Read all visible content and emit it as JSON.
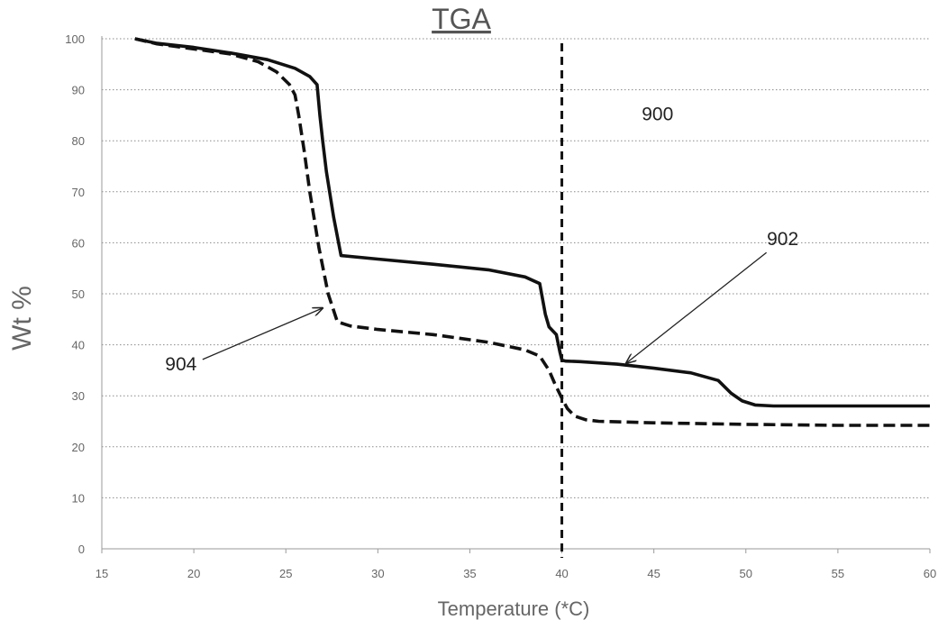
{
  "chart_data": {
    "type": "line",
    "title": "TGA",
    "xlabel": "Temperature (*C)",
    "ylabel": "Wt %",
    "xlim": [
      15,
      60
    ],
    "ylim": [
      0,
      100
    ],
    "x_ticks": [
      15,
      20,
      25,
      30,
      35,
      40,
      45,
      50,
      55,
      60
    ],
    "y_ticks": [
      0,
      10,
      20,
      30,
      40,
      50,
      60,
      70,
      80,
      90,
      100
    ],
    "grid": "horizontal dotted",
    "series": [
      {
        "style": "solid",
        "color": "#111111",
        "x": [
          16.8,
          18,
          20,
          22,
          24,
          25.5,
          26.3,
          26.7,
          26.85,
          27.0,
          27.2,
          27.6,
          28.0,
          30,
          33,
          36,
          38,
          38.8,
          39.1,
          39.3,
          39.7,
          39.9,
          40.0,
          40.2,
          41,
          43,
          45,
          47,
          48.5,
          49.2,
          49.8,
          50.5,
          51.5,
          53,
          56,
          60
        ],
        "y": [
          100,
          99.1,
          98.3,
          97.2,
          95.9,
          94.2,
          92.6,
          91,
          85,
          80,
          74,
          65,
          57.5,
          56.8,
          55.8,
          54.7,
          53.3,
          52,
          46,
          43.5,
          42,
          38.5,
          37,
          36.8,
          36.7,
          36.2,
          35.4,
          34.5,
          33,
          30.5,
          29,
          28.2,
          28,
          28,
          28,
          28
        ]
      },
      {
        "style": "dashed",
        "color": "#111111",
        "x": [
          16.8,
          18,
          20,
          22,
          23.5,
          24.5,
          25.2,
          25.5,
          25.7,
          26.0,
          26.3,
          26.8,
          27.3,
          27.8,
          28.5,
          30,
          33,
          36,
          38,
          38.8,
          39.3,
          39.6,
          40.0,
          40.3,
          40.7,
          41.3,
          42,
          45,
          50,
          55,
          60
        ],
        "y": [
          100,
          99,
          98,
          97,
          95.5,
          93.5,
          91,
          89,
          85,
          78,
          70,
          59,
          50,
          44.5,
          43.7,
          43,
          42,
          40.5,
          39,
          37.8,
          35,
          32.5,
          29.5,
          27.5,
          26,
          25.3,
          25,
          24.7,
          24.4,
          24.2,
          24.2
        ]
      }
    ],
    "vertical_marker": {
      "x": 40,
      "style": "dashed"
    },
    "annotations": [
      {
        "text": "900",
        "x": 45.2,
        "y": 84
      },
      {
        "text": "902",
        "x": 52.0,
        "y": 59.5,
        "arrow_to": [
          43.5,
          36.4
        ]
      },
      {
        "text": "904",
        "x": 19.3,
        "y": 35,
        "arrow_to": [
          27.0,
          47.2
        ]
      }
    ]
  }
}
